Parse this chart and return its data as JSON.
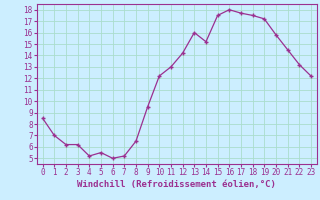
{
  "x": [
    0,
    1,
    2,
    3,
    4,
    5,
    6,
    7,
    8,
    9,
    10,
    11,
    12,
    13,
    14,
    15,
    16,
    17,
    18,
    19,
    20,
    21,
    22,
    23
  ],
  "y": [
    8.5,
    7.0,
    6.2,
    6.2,
    5.2,
    5.5,
    5.0,
    5.2,
    6.5,
    9.5,
    12.2,
    13.0,
    14.2,
    16.0,
    15.2,
    17.5,
    18.0,
    17.7,
    17.5,
    17.2,
    15.8,
    14.5,
    13.2,
    12.2
  ],
  "line_color": "#9B3090",
  "marker": "+",
  "bg_color": "#cceeff",
  "grid_color": "#aaddcc",
  "xlabel": "Windchill (Refroidissement éolien,°C)",
  "xlim": [
    -0.5,
    23.5
  ],
  "ylim": [
    4.5,
    18.5
  ],
  "yticks": [
    5,
    6,
    7,
    8,
    9,
    10,
    11,
    12,
    13,
    14,
    15,
    16,
    17,
    18
  ],
  "xticks": [
    0,
    1,
    2,
    3,
    4,
    5,
    6,
    7,
    8,
    9,
    10,
    11,
    12,
    13,
    14,
    15,
    16,
    17,
    18,
    19,
    20,
    21,
    22,
    23
  ],
  "tick_color": "#9B3090",
  "xlabel_color": "#9B3090",
  "label_fontsize": 6.5,
  "tick_fontsize": 5.5,
  "spine_color": "#9B3090"
}
